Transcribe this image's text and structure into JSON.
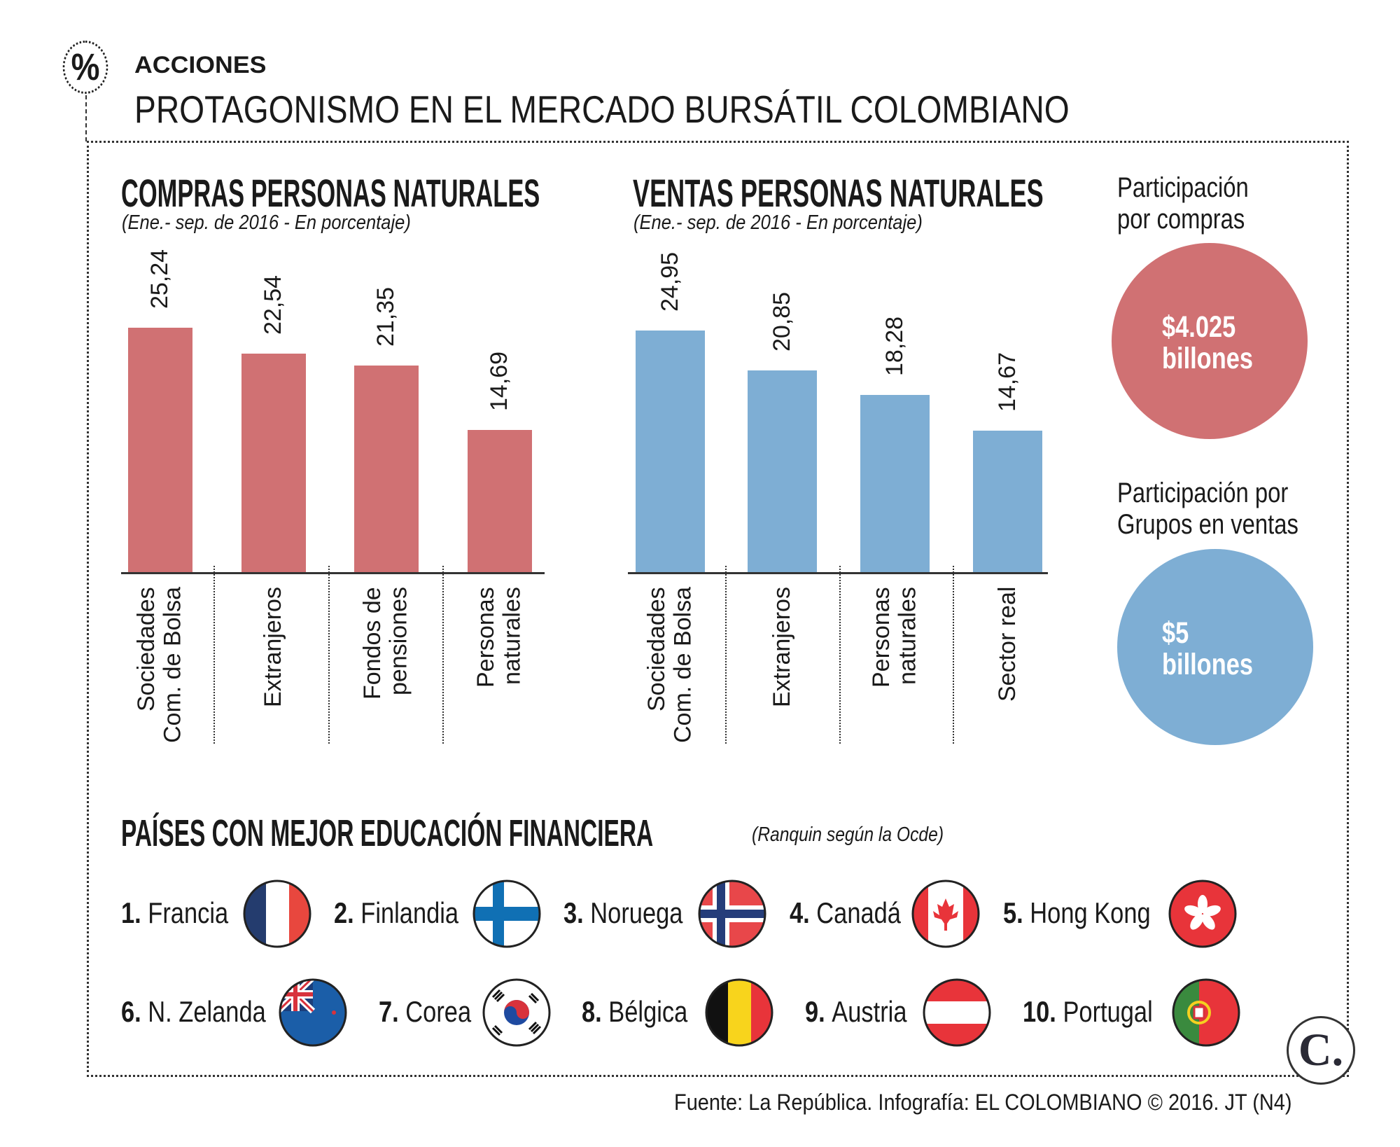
{
  "header": {
    "icon": "percent-icon",
    "kicker": "ACCIONES",
    "title": "PROTAGONISMO EN EL MERCADO BURSÁTIL COLOMBIANO"
  },
  "chart_data": [
    {
      "type": "bar",
      "title": "COMPRAS PERSONAS NATURALES",
      "subtitle": "(Ene.- sep. de 2016 - En porcentaje)",
      "categories": [
        "Sociedades Com. de Bolsa",
        "Extranjeros",
        "Fondos de pensiones",
        "Personas naturales"
      ],
      "category_lines": [
        [
          "Sociedades",
          "Com. de Bolsa"
        ],
        [
          "Extranjeros"
        ],
        [
          "Fondos de",
          "pensiones"
        ],
        [
          "Personas",
          "naturales"
        ]
      ],
      "values": [
        25.24,
        22.54,
        21.35,
        14.69
      ],
      "labels": [
        "25,24",
        "22,54",
        "21,35",
        "14,69"
      ],
      "color": "#d07173",
      "grid": false
    },
    {
      "type": "bar",
      "title": "VENTAS PERSONAS NATURALES",
      "subtitle": "(Ene.- sep. de 2016 - En porcentaje)",
      "categories": [
        "Sociedades Com. de Bolsa",
        "Extranjeros",
        "Personas naturales",
        "Sector real"
      ],
      "category_lines": [
        [
          "Sociedades",
          "Com. de Bolsa"
        ],
        [
          "Extranjeros"
        ],
        [
          "Personas",
          "naturales"
        ],
        [
          "Sector real"
        ]
      ],
      "values": [
        24.95,
        20.85,
        18.28,
        14.67
      ],
      "labels": [
        "24,95",
        "20,85",
        "18,28",
        "14,67"
      ],
      "color": "#7eaed4",
      "grid": false
    }
  ],
  "side": {
    "compras": {
      "title1": "Participación",
      "title2": "por compras",
      "value1": "$4.025",
      "value2": "billones",
      "color": "#d07173"
    },
    "ventas": {
      "title1": "Participación por",
      "title2": "Grupos en ventas",
      "value1": "$5",
      "value2": "billones",
      "color": "#7eaed4"
    }
  },
  "countries": {
    "title": "PAÍSES CON MEJOR EDUCACIÓN FINANCIERA",
    "note": "(Ranquin según la Ocde)",
    "items": [
      {
        "rank": "1.",
        "name": "Francia",
        "flag": "france-flag-icon"
      },
      {
        "rank": "2.",
        "name": "Finlandia",
        "flag": "finland-flag-icon"
      },
      {
        "rank": "3.",
        "name": "Noruega",
        "flag": "norway-flag-icon"
      },
      {
        "rank": "4.",
        "name": "Canadá",
        "flag": "canada-flag-icon"
      },
      {
        "rank": "5.",
        "name": "Hong Kong",
        "flag": "hong-kong-flag-icon"
      },
      {
        "rank": "6.",
        "name": "N. Zelanda",
        "flag": "new-zealand-flag-icon"
      },
      {
        "rank": "7.",
        "name": "Corea",
        "flag": "korea-flag-icon"
      },
      {
        "rank": "8.",
        "name": "Bélgica",
        "flag": "belgium-flag-icon"
      },
      {
        "rank": "9.",
        "name": "Austria",
        "flag": "austria-flag-icon"
      },
      {
        "rank": "10.",
        "name": "Portugal",
        "flag": "portugal-flag-icon"
      }
    ]
  },
  "footer": {
    "source": "Fuente: La República. Infografía: EL COLOMBIANO © 2016. JT (N4)",
    "logo": "C."
  }
}
